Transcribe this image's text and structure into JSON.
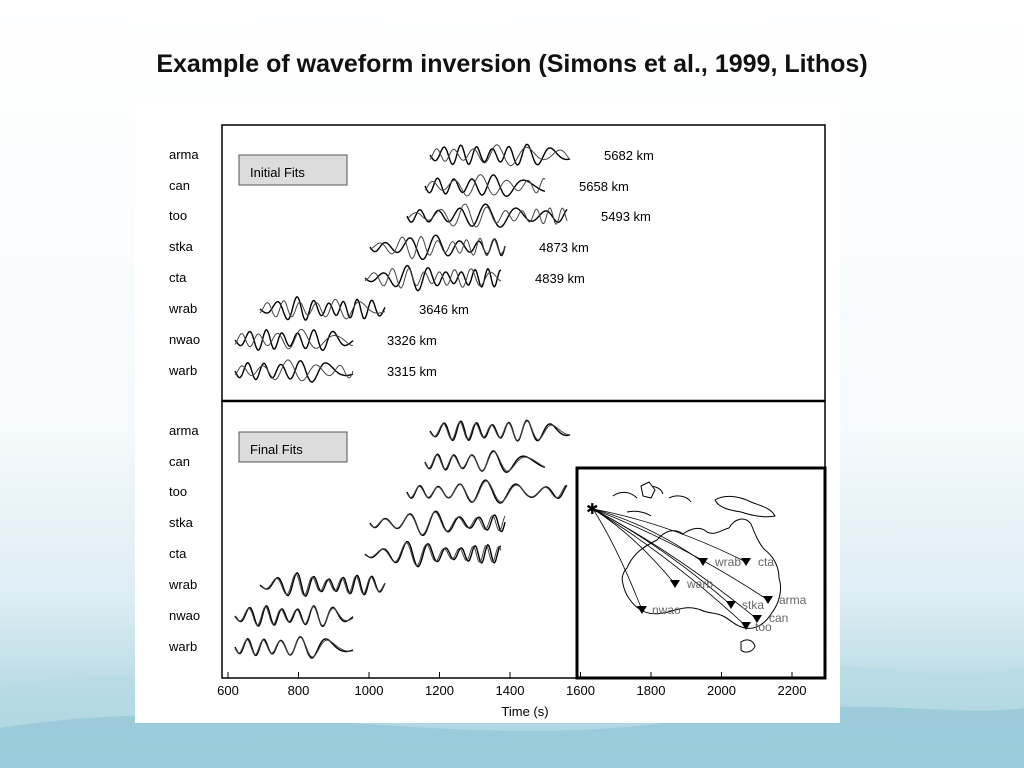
{
  "slide": {
    "title": "Example of waveform inversion (Simons et al., 1999, Lithos)"
  },
  "figure": {
    "top_panel_label": "Initial Fits",
    "bottom_panel_label": "Final Fits",
    "x_axis_label": "Time (s)",
    "x_ticks": [
      "600",
      "800",
      "1000",
      "1200",
      "1400",
      "1600",
      "1800",
      "2000",
      "2200"
    ],
    "stations": [
      {
        "name": "arma",
        "distance": "5682 km"
      },
      {
        "name": "can",
        "distance": "5658 km"
      },
      {
        "name": "too",
        "distance": "5493 km"
      },
      {
        "name": "stka",
        "distance": "4873 km"
      },
      {
        "name": "cta",
        "distance": "4839 km"
      },
      {
        "name": "wrab",
        "distance": "3646 km"
      },
      {
        "name": "nwao",
        "distance": "3326 km"
      },
      {
        "name": "warb",
        "distance": "3315 km"
      }
    ],
    "map_labels": [
      "wrab",
      "cta",
      "warb",
      "arma",
      "stka",
      "nwao",
      "can",
      "too"
    ]
  }
}
